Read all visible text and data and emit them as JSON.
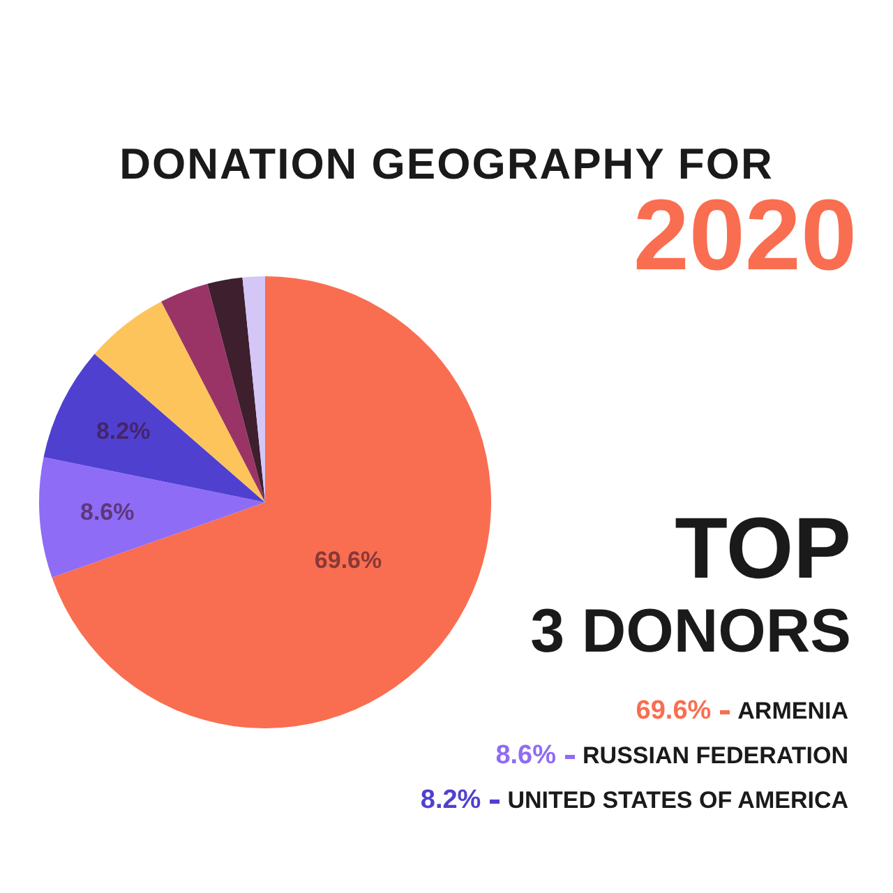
{
  "chart_data": {
    "type": "pie",
    "title": "DONATION GEOGRAPHY  FOR 2020",
    "subtitle": "TOP 3 DONORS",
    "categories": [
      "ARMENIA",
      "RUSSIAN FEDERATION",
      "UNITED STATES OF AMERICA",
      null,
      null,
      null,
      null
    ],
    "values": [
      69.6,
      8.6,
      8.2,
      6,
      3.5,
      2.5,
      1.6
    ],
    "colors": [
      "#f96e50",
      "#8f6cf5",
      "#5040d0",
      "#fdc45c",
      "#9a3466",
      "#3d1f2e",
      "#d4c6f7"
    ],
    "value_labels": [
      "69.6%",
      "8.6%",
      "8.2%",
      null,
      null,
      null,
      null
    ],
    "legend": "bottom right"
  }
}
